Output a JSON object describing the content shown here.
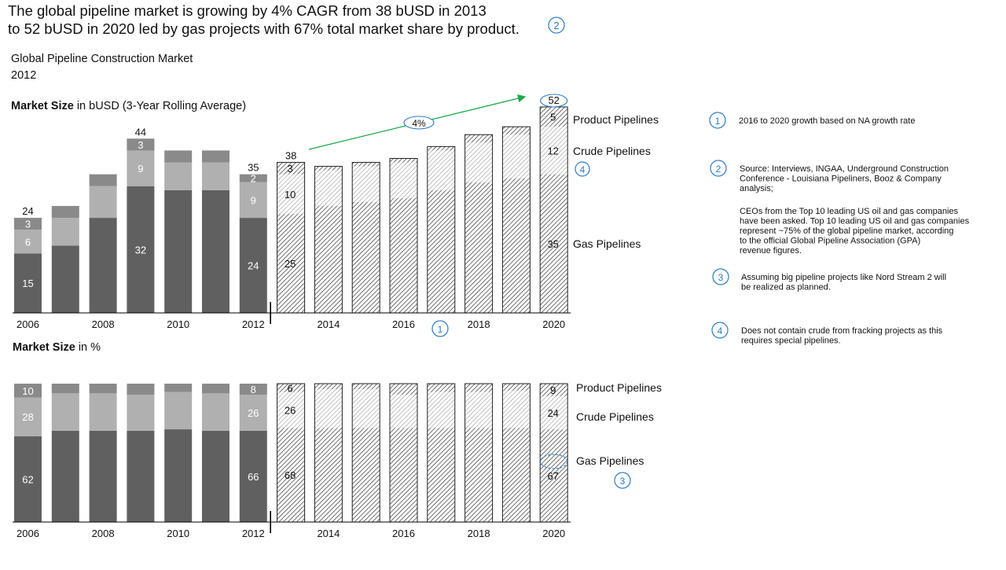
{
  "headline": {
    "line1": "The global pipeline market is growing by 4% CAGR from 38 bUSD in 2013",
    "line2": "to 52 bUSD in 2020 led by gas projects with 67% total market share by product.",
    "marker": "2"
  },
  "subtitle": {
    "line1": "Global Pipeline Construction Market",
    "line2": "2012"
  },
  "cagr_label": "4%",
  "colors": {
    "gas": "#606060",
    "crude": "#b0b0b0",
    "product": "#8a8a8a",
    "hatch": "#333333",
    "axis": "#000000",
    "arrow": "#1aa84a",
    "marker": "#2b7cc7"
  },
  "chart_data": [
    {
      "type": "bar",
      "stacked": true,
      "title_bold": "Market Size",
      "title_rest": " in bUSD (3-Year Rolling Average)",
      "x": [
        2006,
        2007,
        2008,
        2009,
        2010,
        2011,
        2012,
        2013,
        2014,
        2015,
        2016,
        2017,
        2018,
        2019,
        2020
      ],
      "x_tick_labels": [
        "2006",
        "",
        "2008",
        "",
        "2010",
        "",
        "2012",
        "",
        "2014",
        "",
        "2016",
        "",
        "2018",
        "",
        "2020"
      ],
      "forecast_from": 2013,
      "series": [
        {
          "name": "Gas Pipelines",
          "values": [
            15,
            17,
            24,
            32,
            31,
            31,
            24,
            25,
            27,
            28,
            29,
            31,
            33,
            34,
            35
          ]
        },
        {
          "name": "Crude Pipelines",
          "values": [
            6,
            7,
            8,
            9,
            7,
            7,
            9,
            10,
            9,
            9,
            9,
            10,
            10,
            11,
            12
          ]
        },
        {
          "name": "Product Pipelines",
          "values": [
            3,
            3,
            3,
            3,
            3,
            3,
            2,
            3,
            1,
            1,
            1,
            1,
            2,
            2,
            5
          ]
        }
      ],
      "totals": [
        24,
        27,
        35,
        44,
        41,
        41,
        35,
        38,
        37,
        38,
        39,
        42,
        45,
        47,
        52
      ],
      "total_labels": [
        "24",
        "",
        "",
        "44",
        "",
        "",
        "35",
        "38",
        "",
        "",
        "",
        "",
        "",
        "",
        "52"
      ],
      "segment_labels": [
        [
          "15",
          "",
          "",
          "32",
          "",
          "",
          "24",
          "25",
          "",
          "",
          "",
          "",
          "",
          "",
          "35"
        ],
        [
          "6",
          "",
          "",
          "9",
          "",
          "",
          "9",
          "10",
          "",
          "",
          "",
          "",
          "",
          "",
          "12"
        ],
        [
          "3",
          "",
          "",
          "3",
          "",
          "",
          "2",
          "3",
          "",
          "",
          "",
          "",
          "",
          "",
          "5"
        ]
      ],
      "ylim": [
        0,
        52
      ],
      "grid": false,
      "legend": "right"
    },
    {
      "type": "bar",
      "stacked": true,
      "percent": true,
      "title_bold": "Market Size",
      "title_rest": " in %",
      "x": [
        2006,
        2007,
        2008,
        2009,
        2010,
        2011,
        2012,
        2013,
        2014,
        2015,
        2016,
        2017,
        2018,
        2019,
        2020
      ],
      "x_tick_labels": [
        "2006",
        "",
        "2008",
        "",
        "2010",
        "",
        "2012",
        "",
        "2014",
        "",
        "2016",
        "",
        "2018",
        "",
        "2020"
      ],
      "forecast_from": 2013,
      "series": [
        {
          "name": "Gas Pipelines",
          "values": [
            62,
            66,
            66,
            66,
            67,
            66,
            66,
            68,
            68,
            68,
            68,
            68,
            68,
            68,
            67
          ]
        },
        {
          "name": "Crude Pipelines",
          "values": [
            28,
            27,
            27,
            26,
            27,
            27,
            26,
            26,
            28,
            28,
            24,
            26,
            26,
            27,
            24
          ]
        },
        {
          "name": "Product Pipelines",
          "values": [
            10,
            7,
            7,
            8,
            6,
            7,
            8,
            6,
            4,
            4,
            8,
            6,
            6,
            5,
            9
          ]
        }
      ],
      "segment_labels": [
        [
          "62",
          "",
          "",
          "",
          "",
          "",
          "66",
          "68",
          "",
          "",
          "",
          "",
          "",
          "",
          "67"
        ],
        [
          "28",
          "",
          "",
          "",
          "",
          "",
          "26",
          "26",
          "",
          "",
          "",
          "",
          "",
          "",
          "24"
        ],
        [
          "10",
          "",
          "",
          "",
          "",
          "",
          "8",
          "6",
          "",
          "",
          "",
          "",
          "",
          "",
          "9"
        ]
      ],
      "ylim": [
        0,
        100
      ],
      "grid": false,
      "legend": "right"
    }
  ],
  "markers": {
    "top_legend_crude": "4",
    "top_x_2016": "1",
    "bottom_legend_gas": "3"
  },
  "notes": [
    {
      "num": "1",
      "text": "2016 to 2020 growth based on NA growth rate"
    },
    {
      "num": "2",
      "text": "Source:  Interviews, INGAA, Underground Construction Conference - Louisiana Pipeliners, Booz & Company analysis;"
    },
    {
      "num": "",
      "text": "CEOs from the Top 10 leading US oil and gas companies have been asked. Top 10 leading US oil and gas companies represent ~75% of the global pipeline market, according to the official Global Pipeline Association (GPA) revenue figures."
    },
    {
      "num": "3",
      "text": "Assuming big pipeline projects like Nord Stream 2 will be realized as planned."
    },
    {
      "num": "4",
      "text": "Does not contain crude from fracking projects as this requires special pipelines."
    }
  ]
}
